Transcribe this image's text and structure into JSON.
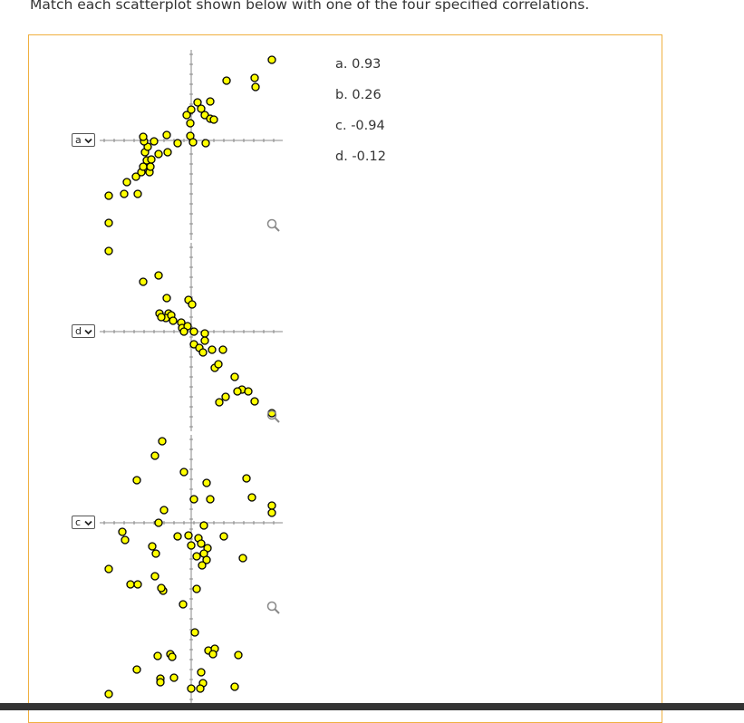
{
  "instruction": "Match each scatterplot shown below with one of the four specified correlations.",
  "answers": [
    {
      "label": "a. 0.93"
    },
    {
      "label": "b. 0.26"
    },
    {
      "label": "c. -0.94"
    },
    {
      "label": "d. -0.12"
    }
  ],
  "plots": [
    {
      "selected": "a"
    },
    {
      "selected": "d"
    },
    {
      "selected": "c"
    },
    {
      "selected": ""
    }
  ],
  "colors": {
    "point_fill": "#ffff00",
    "point_stroke": "#000000",
    "panel_border": "#f0b040"
  },
  "icons": [
    "zoom-icon",
    "chevron-down-icon"
  ]
}
